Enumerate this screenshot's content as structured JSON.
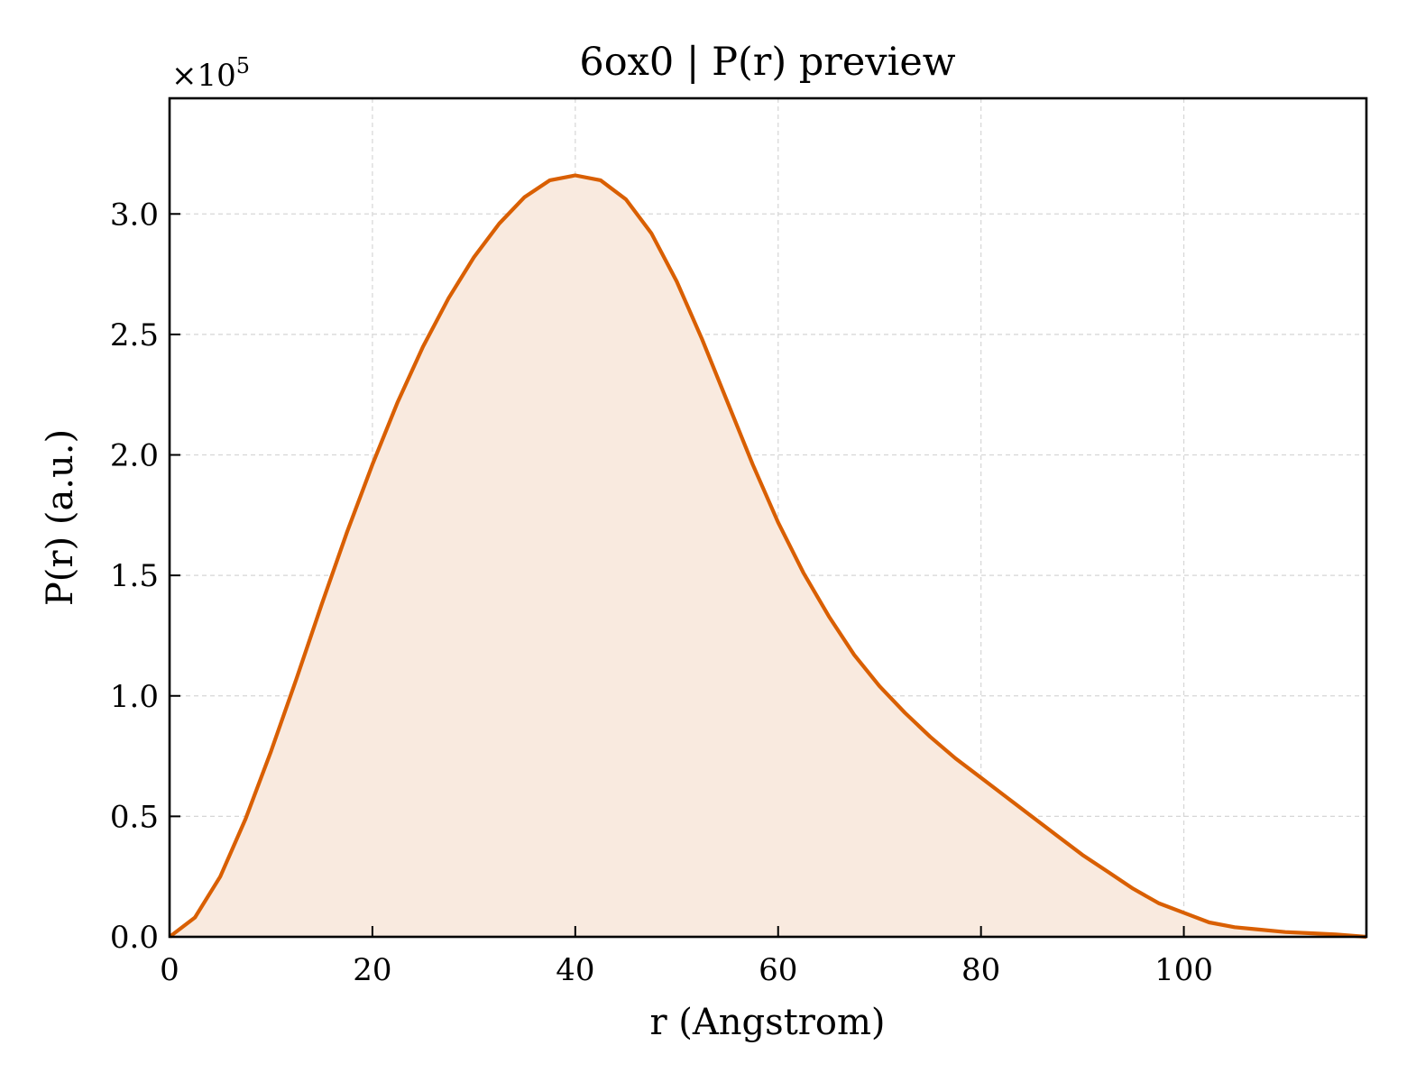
{
  "chart_data": {
    "type": "area",
    "title": "6ox0 | P(r) preview",
    "xlabel": "r (Angstrom)",
    "ylabel": "P(r) (a.u.)",
    "y_multiplier_label": "×10",
    "y_multiplier_exponent": "5",
    "xlim": [
      0,
      118
    ],
    "ylim": [
      0,
      3.48
    ],
    "xticks": [
      0,
      20,
      40,
      60,
      80,
      100
    ],
    "xtick_labels": [
      "0",
      "20",
      "40",
      "60",
      "80",
      "100"
    ],
    "yticks": [
      0,
      0.5,
      1.0,
      1.5,
      2.0,
      2.5,
      3.0
    ],
    "ytick_labels": [
      "0.0",
      "0.5",
      "1.0",
      "1.5",
      "2.0",
      "2.5",
      "3.0"
    ],
    "grid": true,
    "line_color": "#d95f02",
    "fill_color": "#f9eadf",
    "series": [
      {
        "x": [
          0,
          2.5,
          5,
          7.5,
          10,
          12.5,
          15,
          17.5,
          20,
          22.5,
          25,
          27.5,
          30,
          32.5,
          35,
          37.5,
          40,
          42.5,
          45,
          47.5,
          50,
          52.5,
          55,
          57.5,
          60,
          62.5,
          65,
          67.5,
          70,
          72.5,
          75,
          77.5,
          80,
          82.5,
          85,
          87.5,
          90,
          92.5,
          95,
          97.5,
          100,
          102.5,
          105,
          107.5,
          110,
          112.5,
          115,
          118
        ],
        "y": [
          0.0,
          0.08,
          0.25,
          0.49,
          0.77,
          1.07,
          1.38,
          1.68,
          1.96,
          2.22,
          2.45,
          2.65,
          2.82,
          2.96,
          3.07,
          3.14,
          3.16,
          3.14,
          3.06,
          2.92,
          2.72,
          2.48,
          2.22,
          1.96,
          1.72,
          1.51,
          1.33,
          1.17,
          1.04,
          0.93,
          0.83,
          0.74,
          0.66,
          0.58,
          0.5,
          0.42,
          0.34,
          0.27,
          0.2,
          0.14,
          0.1,
          0.06,
          0.04,
          0.03,
          0.02,
          0.015,
          0.01,
          0.0
        ]
      }
    ]
  }
}
